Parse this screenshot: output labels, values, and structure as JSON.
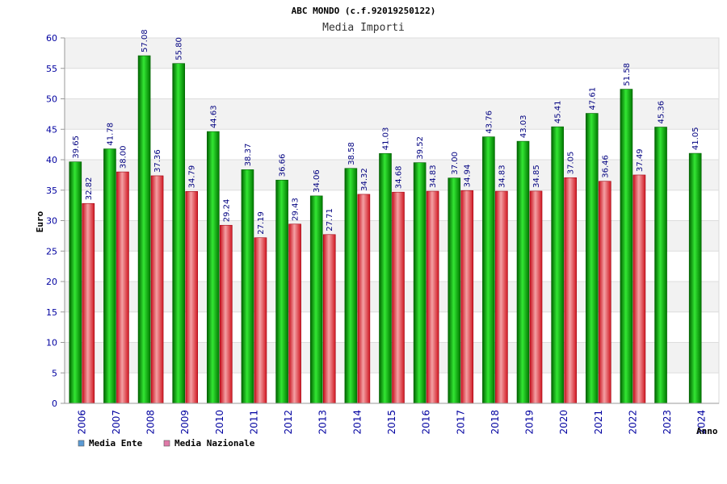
{
  "chart_data": {
    "type": "bar",
    "title": "ABC MONDO (c.f.92019250122)",
    "subtitle": "Media Importi",
    "ylabel": "Euro",
    "xlabel": "Anno",
    "ylim": [
      0,
      60
    ],
    "yticks": [
      0,
      5,
      10,
      15,
      20,
      25,
      30,
      35,
      40,
      45,
      50,
      55,
      60
    ],
    "grid": true,
    "legend_position": "bottom-left",
    "categories": [
      "2006",
      "2007",
      "2008",
      "2009",
      "2010",
      "2011",
      "2012",
      "2013",
      "2014",
      "2015",
      "2016",
      "2017",
      "2018",
      "2019",
      "2020",
      "2021",
      "2022",
      "2023",
      "2024"
    ],
    "series": [
      {
        "name": "Media Ente",
        "legend_color": "#5b9bd5",
        "bar_color": "#00b400",
        "values": [
          39.65,
          41.78,
          57.08,
          55.8,
          44.63,
          38.37,
          36.66,
          34.06,
          38.58,
          41.03,
          39.52,
          37.0,
          43.76,
          43.03,
          45.41,
          47.61,
          51.58,
          45.36,
          41.05
        ],
        "labels": [
          "39.65",
          "41.78",
          "57.08",
          "55.80",
          "44.63",
          "38.37",
          "36.66",
          "34.06",
          "38.58",
          "41.03",
          "39.52",
          "37.00",
          "43.76",
          "43.03",
          "45.41",
          "47.61",
          "51.58",
          "45.36",
          "41.05"
        ]
      },
      {
        "name": "Media Nazionale",
        "legend_color": "#e07aa8",
        "bar_color": "#e8303c",
        "values": [
          32.82,
          38.0,
          37.36,
          34.79,
          29.24,
          27.19,
          29.43,
          27.71,
          34.32,
          34.68,
          34.83,
          34.94,
          34.83,
          34.85,
          37.05,
          36.46,
          37.49,
          null,
          null
        ],
        "labels": [
          "32.82",
          "38.00",
          "37.36",
          "34.79",
          "29.24",
          "27.19",
          "29.43",
          "27.71",
          "34.32",
          "34.68",
          "34.83",
          "34.94",
          "34.83",
          "34.85",
          "37.05",
          "36.46",
          "37.49",
          null,
          null
        ]
      }
    ]
  }
}
